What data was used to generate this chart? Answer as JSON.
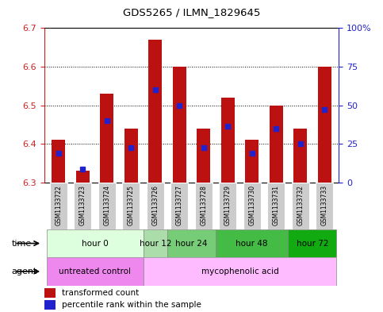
{
  "title": "GDS5265 / ILMN_1829645",
  "samples": [
    "GSM1133722",
    "GSM1133723",
    "GSM1133724",
    "GSM1133725",
    "GSM1133726",
    "GSM1133727",
    "GSM1133728",
    "GSM1133729",
    "GSM1133730",
    "GSM1133731",
    "GSM1133732",
    "GSM1133733"
  ],
  "bar_bottoms": [
    6.3,
    6.3,
    6.3,
    6.3,
    6.3,
    6.3,
    6.3,
    6.3,
    6.3,
    6.3,
    6.3,
    6.3
  ],
  "bar_tops": [
    6.41,
    6.33,
    6.53,
    6.44,
    6.67,
    6.6,
    6.44,
    6.52,
    6.41,
    6.5,
    6.44,
    6.6
  ],
  "percentile_values": [
    6.375,
    6.335,
    6.46,
    6.39,
    6.54,
    6.5,
    6.39,
    6.445,
    6.375,
    6.44,
    6.4,
    6.49
  ],
  "ylim_left": [
    6.3,
    6.7
  ],
  "ylim_right": [
    0,
    100
  ],
  "yticks_left": [
    6.3,
    6.4,
    6.5,
    6.6,
    6.7
  ],
  "yticks_right": [
    0,
    25,
    50,
    75,
    100
  ],
  "ytick_right_labels": [
    "0",
    "25",
    "50",
    "75",
    "100%"
  ],
  "bar_color": "#bb1111",
  "percentile_color": "#2222cc",
  "left_axis_color": "#cc2222",
  "right_axis_color": "#2222cc",
  "bar_width": 0.55,
  "time_groups": [
    {
      "label": "hour 0",
      "start": 0,
      "end": 3
    },
    {
      "label": "hour 12",
      "start": 4,
      "end": 4
    },
    {
      "label": "hour 24",
      "start": 5,
      "end": 6
    },
    {
      "label": "hour 48",
      "start": 7,
      "end": 9
    },
    {
      "label": "hour 72",
      "start": 10,
      "end": 11
    }
  ],
  "time_group_colors": [
    "#ddffdd",
    "#aaddaa",
    "#77cc77",
    "#44bb44",
    "#11aa11"
  ],
  "agent_groups": [
    {
      "label": "untreated control",
      "start": 0,
      "end": 3
    },
    {
      "label": "mycophenolic acid",
      "start": 4,
      "end": 11
    }
  ],
  "agent_group_colors": [
    "#ee88ee",
    "#ffbbff"
  ]
}
